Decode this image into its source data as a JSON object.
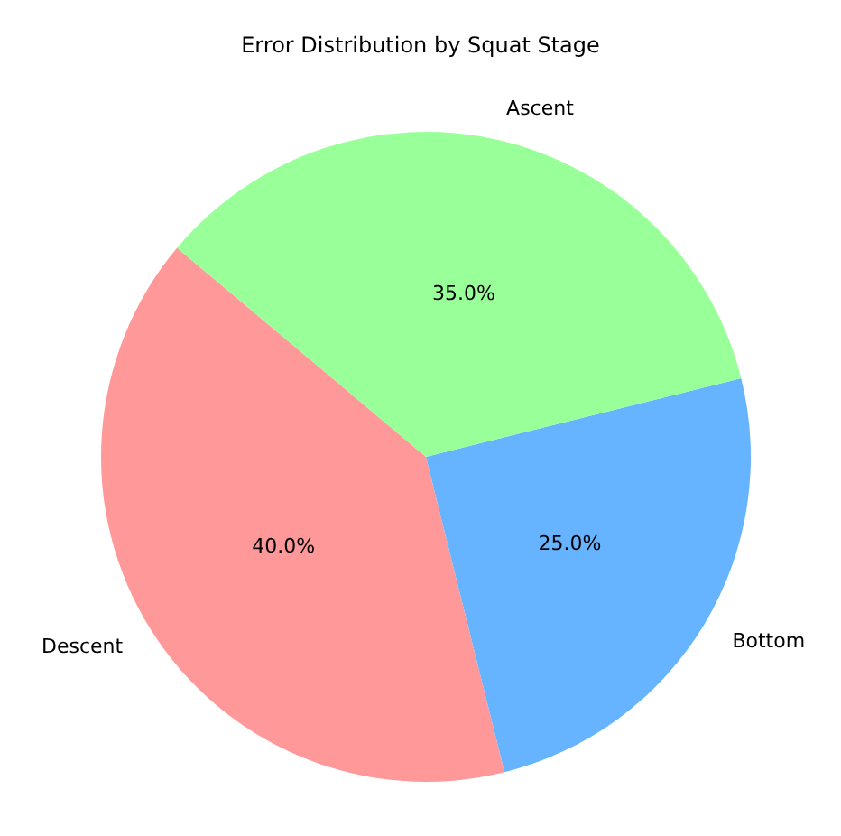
{
  "chart_data": {
    "type": "pie",
    "title": "Error Distribution by Squat Stage",
    "categories": [
      "Descent",
      "Bottom",
      "Ascent"
    ],
    "values": [
      40,
      25,
      35
    ],
    "colors": [
      "#ff9999",
      "#66b3ff",
      "#99ff99"
    ],
    "value_labels": [
      "40.0%",
      "25.0%",
      "35.0%"
    ],
    "legend": false
  }
}
